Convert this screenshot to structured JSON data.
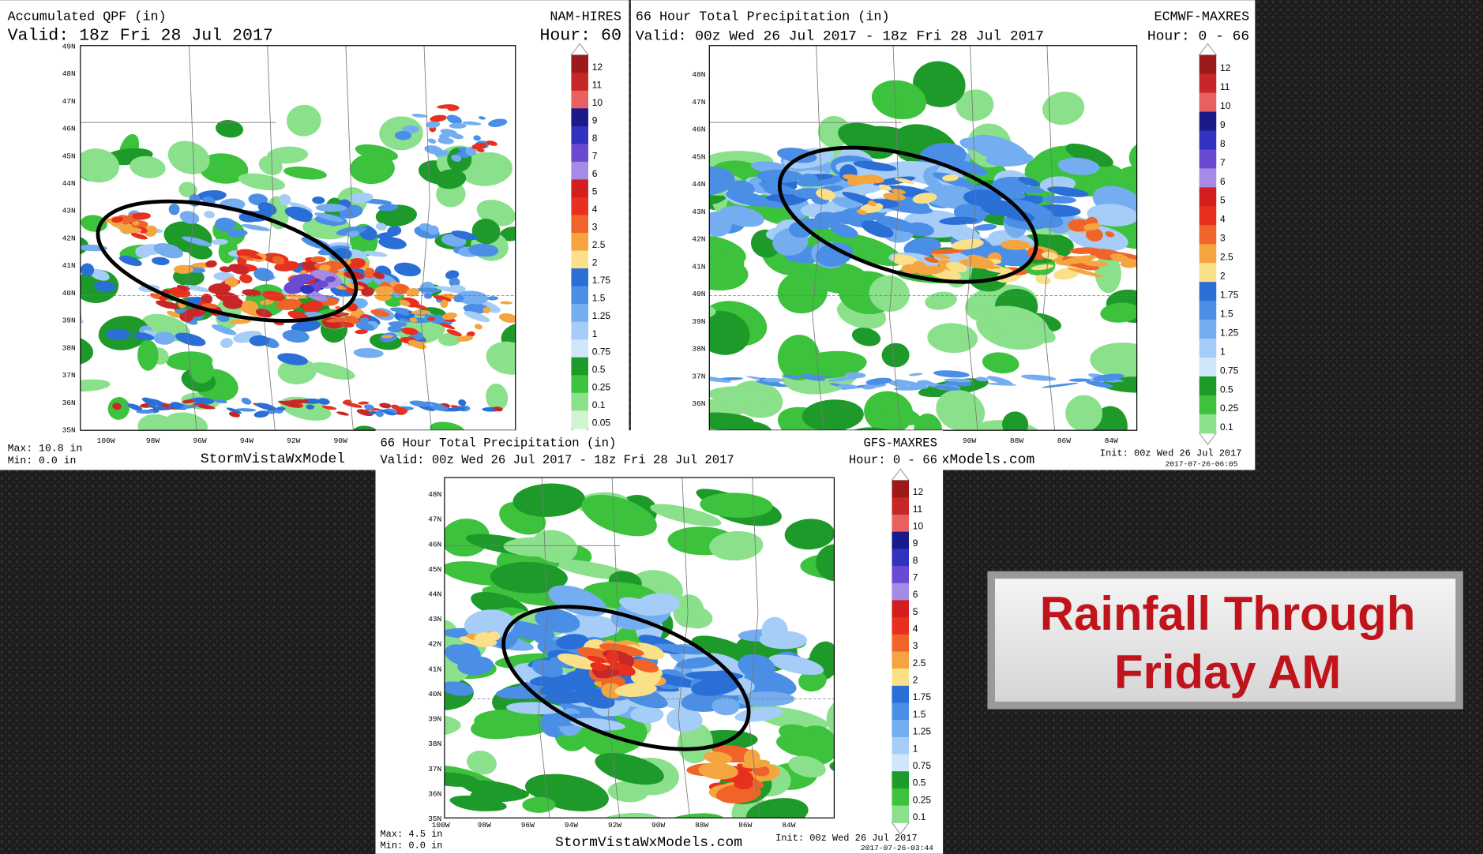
{
  "panels": [
    {
      "title": "Accumulated QPF (in)",
      "valid": "Valid: 18z Fri 28 Jul 2017",
      "model": "NAM-HIRES",
      "hour": "Hour: 60",
      "lat_labels": [
        "49N",
        "48N",
        "47N",
        "46N",
        "45N",
        "44N",
        "43N",
        "42N",
        "41N",
        "40N",
        "39N",
        "38N",
        "37N",
        "36N",
        "35N"
      ],
      "lon_labels": [
        "100W",
        "98W",
        "96W",
        "94W",
        "92W",
        "90W"
      ],
      "legend": [
        "12",
        "11",
        "10",
        "9",
        "8",
        "7",
        "6",
        "5",
        "4",
        "3",
        "2.5",
        "2",
        "1.75",
        "1.5",
        "1.25",
        "1",
        "0.75",
        "0.5",
        "0.25",
        "0.1",
        "0.05"
      ],
      "max": "Max: 10.8 in",
      "min": "Min: 0.0 in",
      "credit": "StormVistaWxModel"
    },
    {
      "title": "66 Hour Total Precipitation (in)",
      "valid": "Valid: 00z Wed 26 Jul 2017 - 18z Fri 28 Jul 2017",
      "model": "ECMWF-MAXRES",
      "hour": "Hour: 0 - 66",
      "lat_labels": [
        "48N",
        "47N",
        "46N",
        "45N",
        "44N",
        "43N",
        "42N",
        "41N",
        "40N",
        "39N",
        "38N",
        "37N",
        "36N"
      ],
      "lon_labels": [
        "90W",
        "88W",
        "86W",
        "84W"
      ],
      "legend": [
        "12",
        "11",
        "10",
        "9",
        "8",
        "7",
        "6",
        "5",
        "4",
        "3",
        "2.5",
        "2",
        "1.75",
        "1.5",
        "1.25",
        "1",
        "0.75",
        "0.5",
        "0.25",
        "0.1"
      ],
      "credit": "xModels.com",
      "init": "Init: 00z Wed 26 Jul 2017",
      "stamp": "2017-07-26-06:05"
    },
    {
      "title": "66 Hour Total Precipitation (in)",
      "valid": "Valid: 00z Wed 26 Jul 2017 - 18z Fri 28 Jul 2017",
      "model": "GFS-MAXRES",
      "hour": "Hour: 0 - 66",
      "lat_labels": [
        "48N",
        "47N",
        "46N",
        "45N",
        "44N",
        "43N",
        "42N",
        "41N",
        "40N",
        "39N",
        "38N",
        "37N",
        "36N",
        "35N"
      ],
      "lon_labels": [
        "100W",
        "98W",
        "96W",
        "94W",
        "92W",
        "90W",
        "88W",
        "86W",
        "84W"
      ],
      "legend": [
        "12",
        "11",
        "10",
        "9",
        "8",
        "7",
        "6",
        "5",
        "4",
        "3",
        "2.5",
        "2",
        "1.75",
        "1.5",
        "1.25",
        "1",
        "0.75",
        "0.5",
        "0.25",
        "0.1"
      ],
      "max": "Max: 4.5 in",
      "min": "Min: 0.0 in",
      "credit": "StormVistaWxModels.com",
      "init": "Init: 00z Wed 26 Jul 2017",
      "stamp": "2017-07-26-03:44"
    }
  ],
  "title_box": {
    "line1": "Rainfall Through",
    "line2": "Friday AM"
  }
}
